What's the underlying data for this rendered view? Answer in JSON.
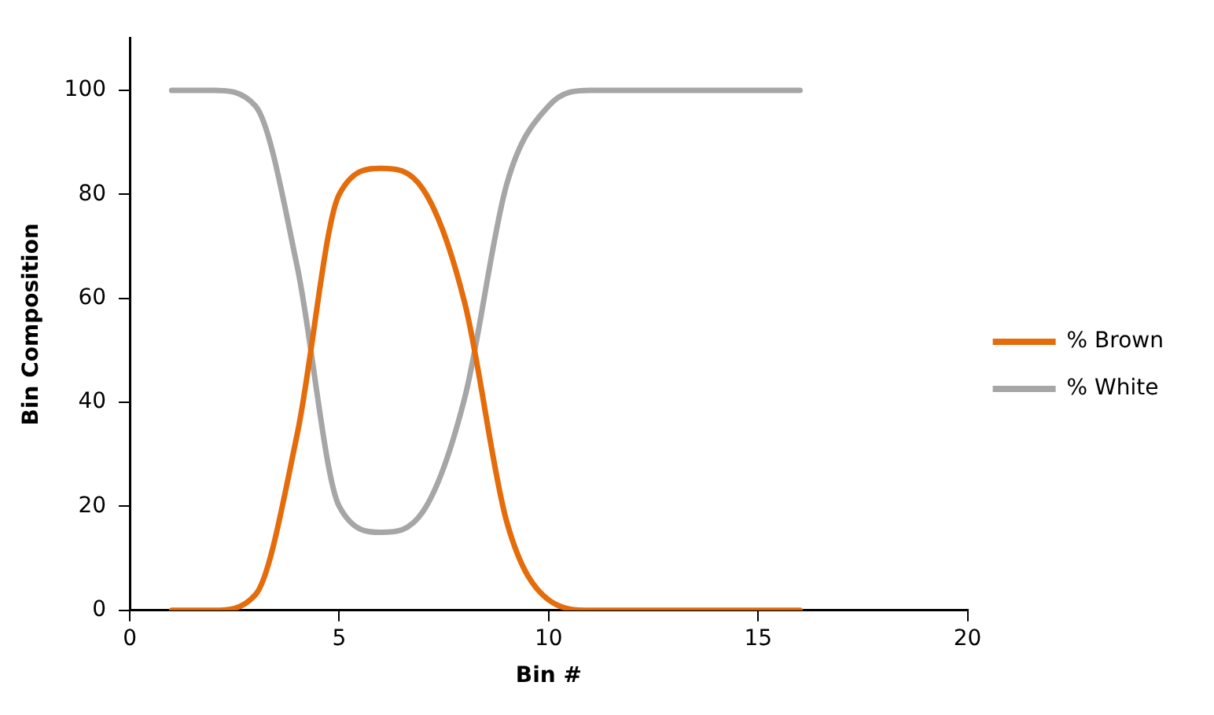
{
  "chart_data": {
    "type": "line",
    "xlabel": "Bin #",
    "ylabel": "Bin Composition",
    "x": [
      1,
      2,
      3,
      4,
      5,
      6,
      7,
      8,
      9,
      10,
      11,
      12,
      13,
      14,
      15,
      16
    ],
    "series": [
      {
        "name": "% Brown",
        "color": "#e46c0a",
        "values": [
          0,
          0,
          3,
          34,
          80,
          85,
          81,
          59,
          17,
          2,
          0,
          0,
          0,
          0,
          0,
          0
        ]
      },
      {
        "name": "% White",
        "color": "#a6a6a6",
        "values": [
          100,
          100,
          97,
          66,
          20,
          15,
          19,
          41,
          82,
          97,
          100,
          100,
          100,
          100,
          100,
          100
        ]
      }
    ],
    "xlim": [
      0,
      20
    ],
    "xticks": [
      0,
      5,
      10,
      15,
      20
    ],
    "ylim": [
      0,
      110
    ],
    "yticks": [
      0,
      20,
      40,
      60,
      80,
      100
    ],
    "grid": false,
    "legend": "right",
    "marker": "none",
    "line_style": "solid"
  }
}
